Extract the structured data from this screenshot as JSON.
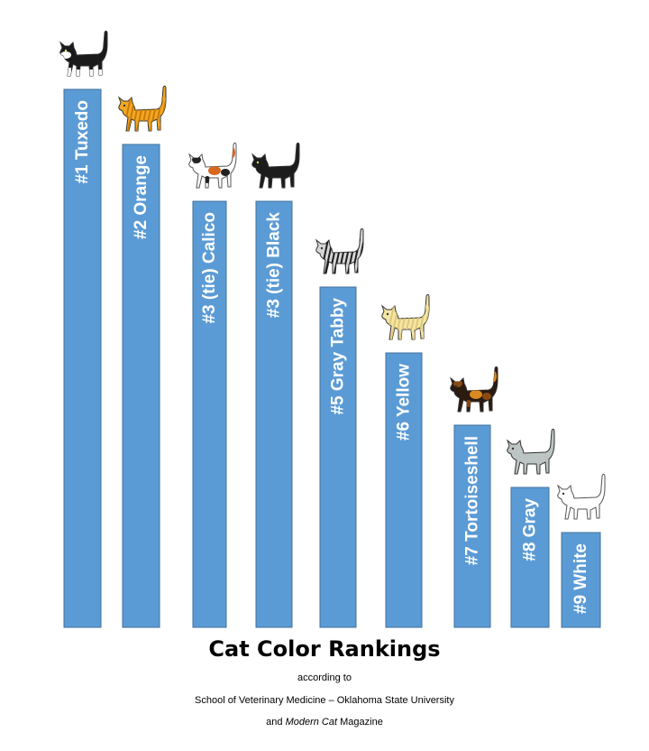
{
  "chart_data": {
    "type": "bar",
    "title": "Cat Color Rankings",
    "subtitle_lines": [
      "according to",
      "School of Veterinary Medicine – Oklahoma State University",
      "and ",
      "Modern Cat",
      " Magazine"
    ],
    "bars": [
      {
        "label": "#1  Tuxedo",
        "rank": 1,
        "cat": "tuxedo-cat-icon",
        "coat": {
          "base": "#1a1a1a",
          "pattern": "tuxedo",
          "p1": "#ffffff"
        }
      },
      {
        "label": "#2  Orange",
        "rank": 2,
        "cat": "orange-cat-icon",
        "coat": {
          "base": "#f2a91e",
          "pattern": "stripes",
          "p1": "#c97a0c"
        }
      },
      {
        "label": "#3 (tie)  Calico",
        "rank": 3,
        "cat": "calico-cat-icon",
        "coat": {
          "base": "#ffffff",
          "pattern": "patches",
          "p1": "#d9681f",
          "p2": "#222222"
        }
      },
      {
        "label": "#3 (tie)  Black",
        "rank": 3,
        "cat": "black-cat-icon",
        "coat": {
          "base": "#1c1c1c",
          "pattern": "none"
        }
      },
      {
        "label": "#5  Gray Tabby",
        "rank": 5,
        "cat": "gray-tabby-cat-icon",
        "coat": {
          "base": "#d6d6d6",
          "pattern": "stripes",
          "p1": "#1e1e1e"
        }
      },
      {
        "label": "#6  Yellow",
        "rank": 6,
        "cat": "yellow-cat-icon",
        "coat": {
          "base": "#f4e6a6",
          "pattern": "stripes",
          "p1": "#e0c878"
        }
      },
      {
        "label": "#7  Tortoiseshell",
        "rank": 7,
        "cat": "tortoiseshell-cat-icon",
        "coat": {
          "base": "#2a1a10",
          "pattern": "patches",
          "p1": "#d98a1f",
          "p2": "#8a4a12"
        }
      },
      {
        "label": "#8  Gray",
        "rank": 8,
        "cat": "gray-cat-icon",
        "coat": {
          "base": "#bcc4c4",
          "pattern": "none"
        }
      },
      {
        "label": "#9  White",
        "rank": 9,
        "cat": "white-cat-icon",
        "coat": {
          "base": "#ffffff",
          "pattern": "none"
        }
      }
    ],
    "colors": {
      "bar": "#5b9bd5",
      "bar_edge": "#41719c",
      "label": "#ffffff"
    }
  }
}
